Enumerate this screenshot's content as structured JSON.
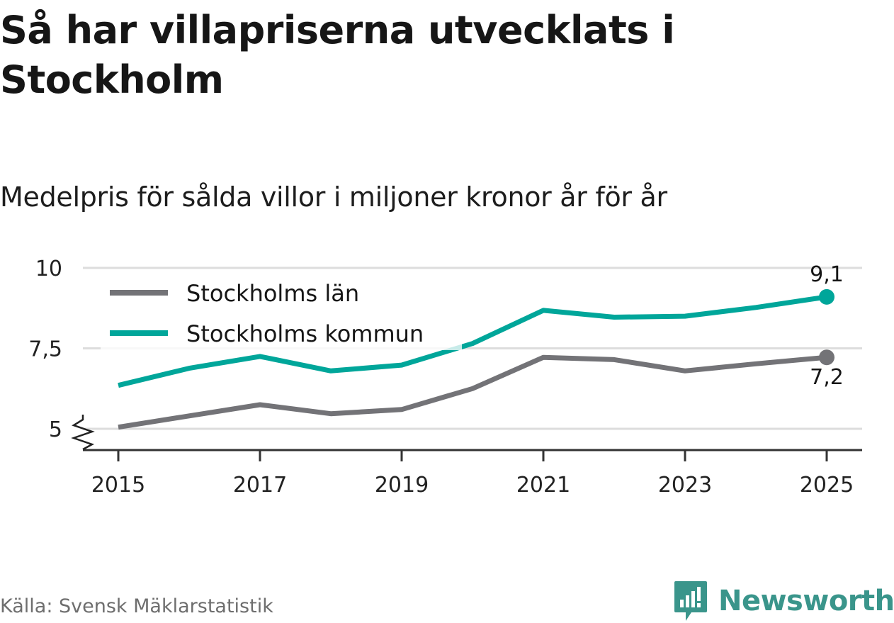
{
  "title": "Så har villapriserna utvecklats i Stockholm",
  "subtitle": "Medelpris för sålda villor i miljoner kronor år för år",
  "source": "Källa: Svensk Mäklarstatistik",
  "brand": "Newsworthy",
  "colors": {
    "series_lan": "#737377",
    "series_kommun": "#00a69a",
    "grid": "#dddddd",
    "axis": "#333333",
    "brand": "#3a958b"
  },
  "chart_data": {
    "type": "line",
    "x": [
      2015,
      2016,
      2017,
      2018,
      2019,
      2020,
      2021,
      2022,
      2023,
      2024,
      2025
    ],
    "x_ticks": [
      "2015",
      "2017",
      "2019",
      "2021",
      "2023",
      "2025"
    ],
    "y_ticks": [
      "5",
      "7,5",
      "10"
    ],
    "y_tick_values": [
      5,
      7.5,
      10
    ],
    "ylim": [
      4.3,
      10
    ],
    "y_axis_break": true,
    "grid": true,
    "legend_position": "top-left",
    "series": [
      {
        "name": "Stockholms län",
        "color": "#737377",
        "values": [
          5.05,
          5.4,
          5.75,
          5.47,
          5.6,
          6.25,
          7.22,
          7.15,
          6.8,
          7.02,
          7.22
        ],
        "end_label": "7,2"
      },
      {
        "name": "Stockholms kommun",
        "color": "#00a69a",
        "values": [
          6.35,
          6.88,
          7.25,
          6.8,
          6.98,
          7.65,
          8.68,
          8.47,
          8.5,
          8.77,
          9.1
        ],
        "end_label": "9,1"
      }
    ]
  }
}
